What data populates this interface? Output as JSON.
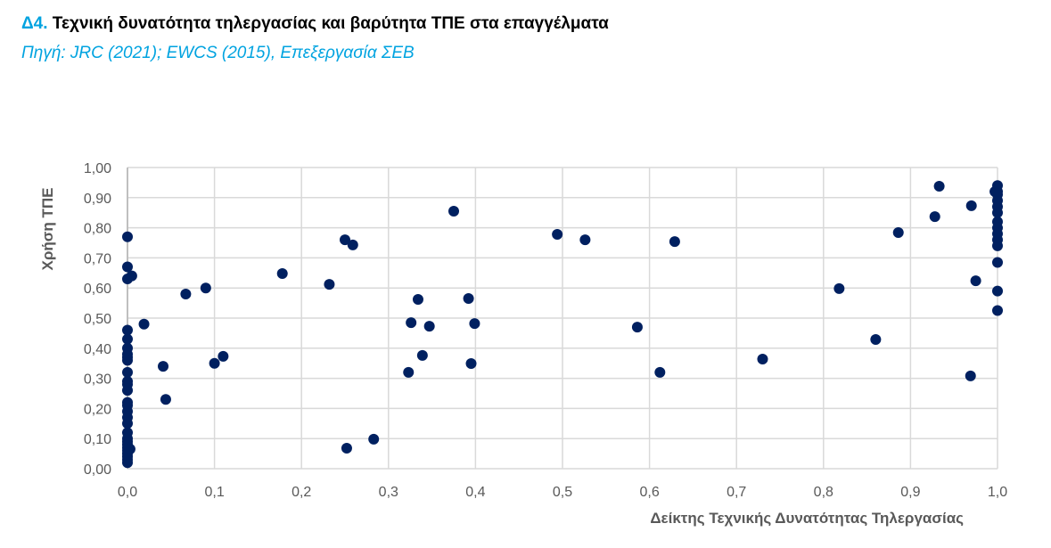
{
  "header": {
    "number": "Δ4.",
    "title": "Τεχνική δυνατότητα τηλεργασίας και βαρύτητα ΤΠΕ στα επαγγέλματα",
    "source": "Πηγή: JRC (2021); EWCS (2015), Επεξεργασία ΣΕΒ"
  },
  "chart_data": {
    "type": "scatter",
    "xlabel": "Δείκτης Τεχνικής Δυνατότητας Τηλεργασίας",
    "ylabel": "Χρήση ΤΠΕ",
    "xlim": [
      0,
      1
    ],
    "ylim": [
      0,
      1
    ],
    "xticks": [
      "0,0",
      "0,1",
      "0,2",
      "0,3",
      "0,4",
      "0,5",
      "0,6",
      "0,7",
      "0,8",
      "0,9",
      "1,0"
    ],
    "yticks": [
      "0,00",
      "0,10",
      "0,20",
      "0,30",
      "0,40",
      "0,50",
      "0,60",
      "0,70",
      "0,80",
      "0,90",
      "1,00"
    ],
    "grid": true,
    "color": "#002060",
    "points": [
      [
        0,
        0.77
      ],
      [
        0,
        0.67
      ],
      [
        0,
        0.63
      ],
      [
        0,
        0.46
      ],
      [
        0,
        0.43
      ],
      [
        0,
        0.4
      ],
      [
        0,
        0.38
      ],
      [
        0,
        0.37
      ],
      [
        0,
        0.36
      ],
      [
        0,
        0.32
      ],
      [
        0,
        0.29
      ],
      [
        0,
        0.28
      ],
      [
        0,
        0.26
      ],
      [
        0,
        0.22
      ],
      [
        0,
        0.21
      ],
      [
        0,
        0.19
      ],
      [
        0,
        0.17
      ],
      [
        0,
        0.15
      ],
      [
        0,
        0.12
      ],
      [
        0,
        0.1
      ],
      [
        0,
        0.09
      ],
      [
        0,
        0.08
      ],
      [
        0,
        0.07
      ],
      [
        0,
        0.06
      ],
      [
        0,
        0.05
      ],
      [
        0,
        0.04
      ],
      [
        0,
        0.03
      ],
      [
        0,
        0.02
      ],
      [
        0.005,
        0.64
      ],
      [
        0.003,
        0.065
      ],
      [
        1,
        0.94
      ],
      [
        1,
        0.92
      ],
      [
        1,
        0.91
      ],
      [
        1,
        0.89
      ],
      [
        1,
        0.87
      ],
      [
        1,
        0.85
      ],
      [
        1,
        0.82
      ],
      [
        1,
        0.8
      ],
      [
        1,
        0.78
      ],
      [
        1,
        0.76
      ],
      [
        1,
        0.74
      ],
      [
        1,
        0.685
      ],
      [
        1,
        0.59
      ],
      [
        1,
        0.525
      ],
      [
        0.997,
        0.92
      ],
      [
        0.019,
        0.48
      ],
      [
        0.067,
        0.58
      ],
      [
        0.09,
        0.6
      ],
      [
        0.041,
        0.34
      ],
      [
        0.044,
        0.23
      ],
      [
        0.1,
        0.35
      ],
      [
        0.11,
        0.373
      ],
      [
        0.178,
        0.648
      ],
      [
        0.232,
        0.612
      ],
      [
        0.25,
        0.76
      ],
      [
        0.259,
        0.743
      ],
      [
        0.252,
        0.068
      ],
      [
        0.283,
        0.098
      ],
      [
        0.323,
        0.32
      ],
      [
        0.326,
        0.485
      ],
      [
        0.334,
        0.562
      ],
      [
        0.339,
        0.376
      ],
      [
        0.347,
        0.473
      ],
      [
        0.375,
        0.855
      ],
      [
        0.392,
        0.565
      ],
      [
        0.399,
        0.482
      ],
      [
        0.395,
        0.349
      ],
      [
        0.494,
        0.778
      ],
      [
        0.526,
        0.76
      ],
      [
        0.586,
        0.47
      ],
      [
        0.612,
        0.32
      ],
      [
        0.629,
        0.754
      ],
      [
        0.73,
        0.364
      ],
      [
        0.818,
        0.598
      ],
      [
        0.86,
        0.429
      ],
      [
        0.886,
        0.784
      ],
      [
        0.928,
        0.837
      ],
      [
        0.933,
        0.938
      ],
      [
        0.97,
        0.873
      ],
      [
        0.975,
        0.624
      ],
      [
        0.969,
        0.308
      ]
    ]
  }
}
